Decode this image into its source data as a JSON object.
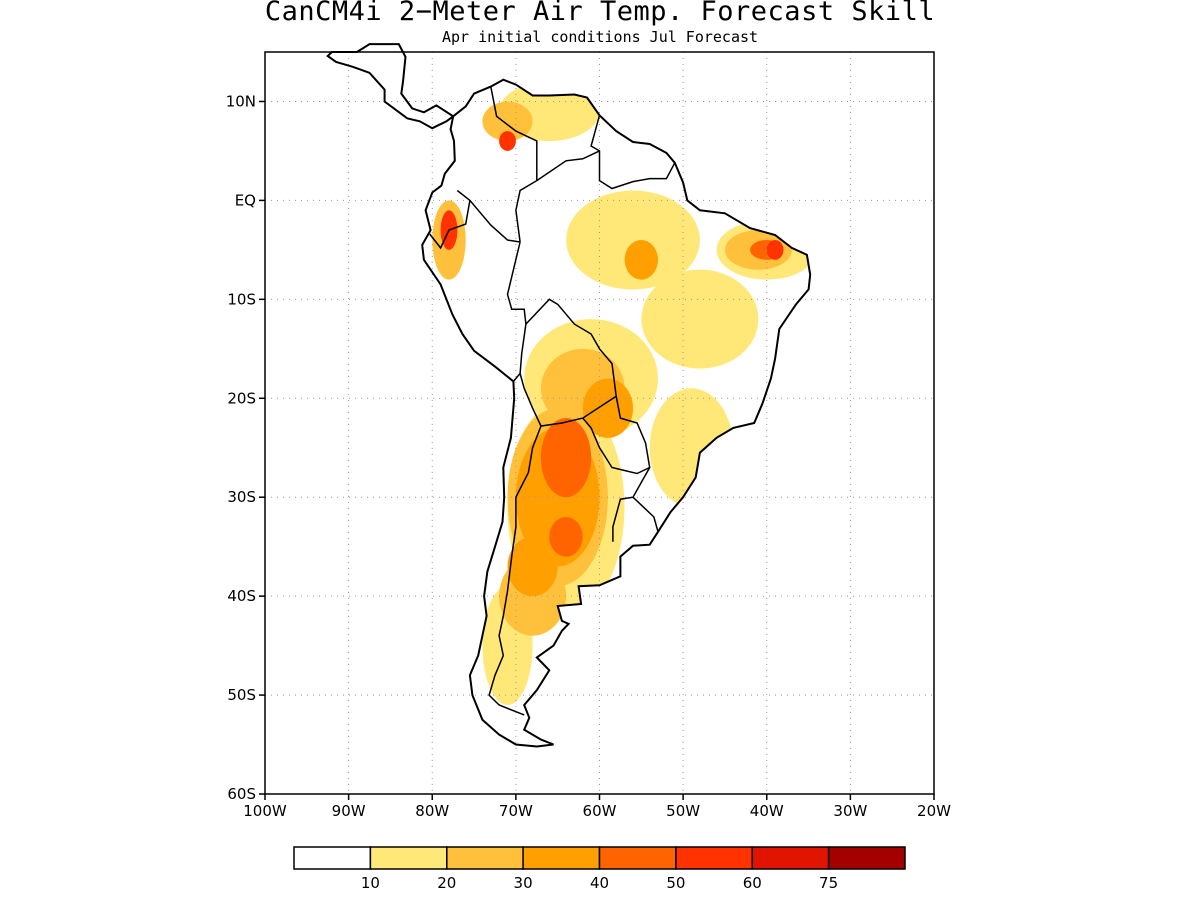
{
  "title": "CanCM4i 2−Meter Air Temp. Forecast Skill",
  "subtitle": "Apr initial conditions   Jul Forecast",
  "map": {
    "lon_range": [
      -100,
      -20
    ],
    "lat_range": [
      -60,
      15
    ],
    "lat_ticks": [
      {
        "lat": 10,
        "label": "10N"
      },
      {
        "lat": 0,
        "label": "EQ"
      },
      {
        "lat": -10,
        "label": "10S"
      },
      {
        "lat": -20,
        "label": "20S"
      },
      {
        "lat": -30,
        "label": "30S"
      },
      {
        "lat": -40,
        "label": "40S"
      },
      {
        "lat": -50,
        "label": "50S"
      },
      {
        "lat": -60,
        "label": "60S"
      }
    ],
    "lon_ticks": [
      {
        "lon": -100,
        "label": "100W"
      },
      {
        "lon": -90,
        "label": "90W"
      },
      {
        "lon": -80,
        "label": "80W"
      },
      {
        "lon": -70,
        "label": "70W"
      },
      {
        "lon": -60,
        "label": "60W"
      },
      {
        "lon": -50,
        "label": "50W"
      },
      {
        "lon": -40,
        "label": "40W"
      },
      {
        "lon": -30,
        "label": "30W"
      },
      {
        "lon": -20,
        "label": "20W"
      }
    ],
    "grid": "dotted"
  },
  "colorbar": {
    "colors": [
      "#ffffff",
      "#ffe878",
      "#ffc03c",
      "#ffa000",
      "#ff6400",
      "#ff3200",
      "#e11400",
      "#a50000"
    ],
    "labels": [
      "10",
      "20",
      "30",
      "40",
      "50",
      "60",
      "75"
    ]
  },
  "skill_regions": [
    {
      "level": 1,
      "lon": -64,
      "lat": -31,
      "rx": 7,
      "ry": 11
    },
    {
      "level": 1,
      "lon": -61,
      "lat": -18,
      "rx": 8,
      "ry": 6
    },
    {
      "level": 1,
      "lon": -48,
      "lat": -12,
      "rx": 7,
      "ry": 5
    },
    {
      "level": 1,
      "lon": -56,
      "lat": -4,
      "rx": 8,
      "ry": 5
    },
    {
      "level": 1,
      "lon": -40,
      "lat": -5,
      "rx": 6,
      "ry": 3
    },
    {
      "level": 1,
      "lon": -49,
      "lat": -25,
      "rx": 5,
      "ry": 6
    },
    {
      "level": 1,
      "lon": -71,
      "lat": -45,
      "rx": 3,
      "ry": 6
    },
    {
      "level": 1,
      "lon": -66,
      "lat": 9,
      "rx": 6,
      "ry": 3
    },
    {
      "level": 2,
      "lon": -65,
      "lat": -30,
      "rx": 6,
      "ry": 9
    },
    {
      "level": 2,
      "lon": -68,
      "lat": -40,
      "rx": 4,
      "ry": 4
    },
    {
      "level": 2,
      "lon": -62,
      "lat": -19,
      "rx": 5,
      "ry": 4
    },
    {
      "level": 2,
      "lon": -41,
      "lat": -5,
      "rx": 4,
      "ry": 2
    },
    {
      "level": 2,
      "lon": -78,
      "lat": -4,
      "rx": 2,
      "ry": 4
    },
    {
      "level": 2,
      "lon": -71,
      "lat": 8,
      "rx": 3,
      "ry": 2
    },
    {
      "level": 3,
      "lon": -65,
      "lat": -30,
      "rx": 5,
      "ry": 7
    },
    {
      "level": 3,
      "lon": -68,
      "lat": -37,
      "rx": 3,
      "ry": 3
    },
    {
      "level": 3,
      "lon": -59,
      "lat": -21,
      "rx": 3,
      "ry": 3
    },
    {
      "level": 3,
      "lon": -55,
      "lat": -6,
      "rx": 2,
      "ry": 2
    },
    {
      "level": 4,
      "lon": -64,
      "lat": -26,
      "rx": 3,
      "ry": 4
    },
    {
      "level": 4,
      "lon": -64,
      "lat": -34,
      "rx": 2,
      "ry": 2
    },
    {
      "level": 4,
      "lon": -40,
      "lat": -5,
      "rx": 2,
      "ry": 1
    },
    {
      "level": 5,
      "lon": -78,
      "lat": -3,
      "rx": 1,
      "ry": 2
    },
    {
      "level": 5,
      "lon": -39,
      "lat": -5,
      "rx": 1,
      "ry": 1
    },
    {
      "level": 5,
      "lon": -71,
      "lat": 6,
      "rx": 1,
      "ry": 1
    }
  ]
}
